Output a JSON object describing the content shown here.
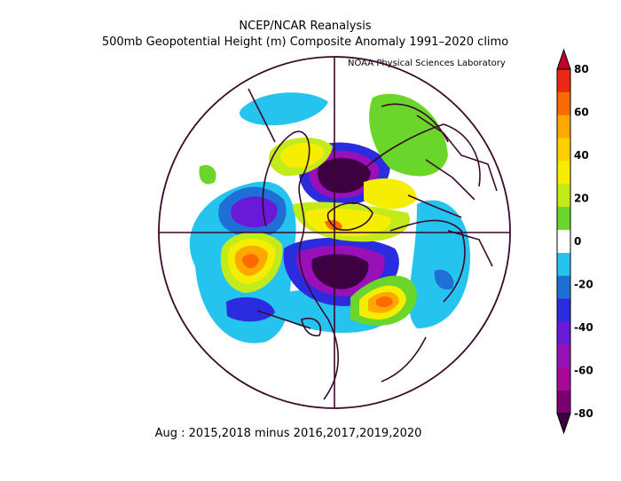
{
  "header": {
    "title_line1": "NCEP/NCAR Reanalysis",
    "title_line2": "500mb Geopotential Height (m) Composite Anomaly 1991–2020 climo",
    "credit": "NOAA Physical Sciences Laboratory"
  },
  "caption": "Aug : 2015,2018 minus 2016,2017,2019,2020",
  "map": {
    "projection": "north-polar-stereographic",
    "variable": "500mb geopotential height anomaly",
    "units": "m"
  },
  "colorbar": {
    "labels": [
      "80",
      "60",
      "40",
      "20",
      "0",
      "-20",
      "-40",
      "-60",
      "-80"
    ],
    "levels": [
      {
        "range": "> 80",
        "color": "#c2002a"
      },
      {
        "range": "70 to 80",
        "color": "#ea2a12"
      },
      {
        "range": "60 to 70",
        "color": "#ff6a00"
      },
      {
        "range": "50 to 60",
        "color": "#ffa800"
      },
      {
        "range": "40 to 50",
        "color": "#ffd000"
      },
      {
        "range": "30 to 40",
        "color": "#f5ee00"
      },
      {
        "range": "20 to 30",
        "color": "#c3ea1a"
      },
      {
        "range": "10 to 20",
        "color": "#6bd62a"
      },
      {
        "range": "-10 to 10",
        "color": "#ffffff"
      },
      {
        "range": "-20 to -10",
        "color": "#25c4ee"
      },
      {
        "range": "-30 to -20",
        "color": "#1e6fd6"
      },
      {
        "range": "-40 to -30",
        "color": "#2b2be0"
      },
      {
        "range": "-50 to -40",
        "color": "#6a19d8"
      },
      {
        "range": "-60 to -50",
        "color": "#9a10b8"
      },
      {
        "range": "-70 to -60",
        "color": "#a8079a"
      },
      {
        "range": "-80 to -70",
        "color": "#7d0070"
      },
      {
        "range": "< -80",
        "color": "#3d0040"
      }
    ]
  }
}
